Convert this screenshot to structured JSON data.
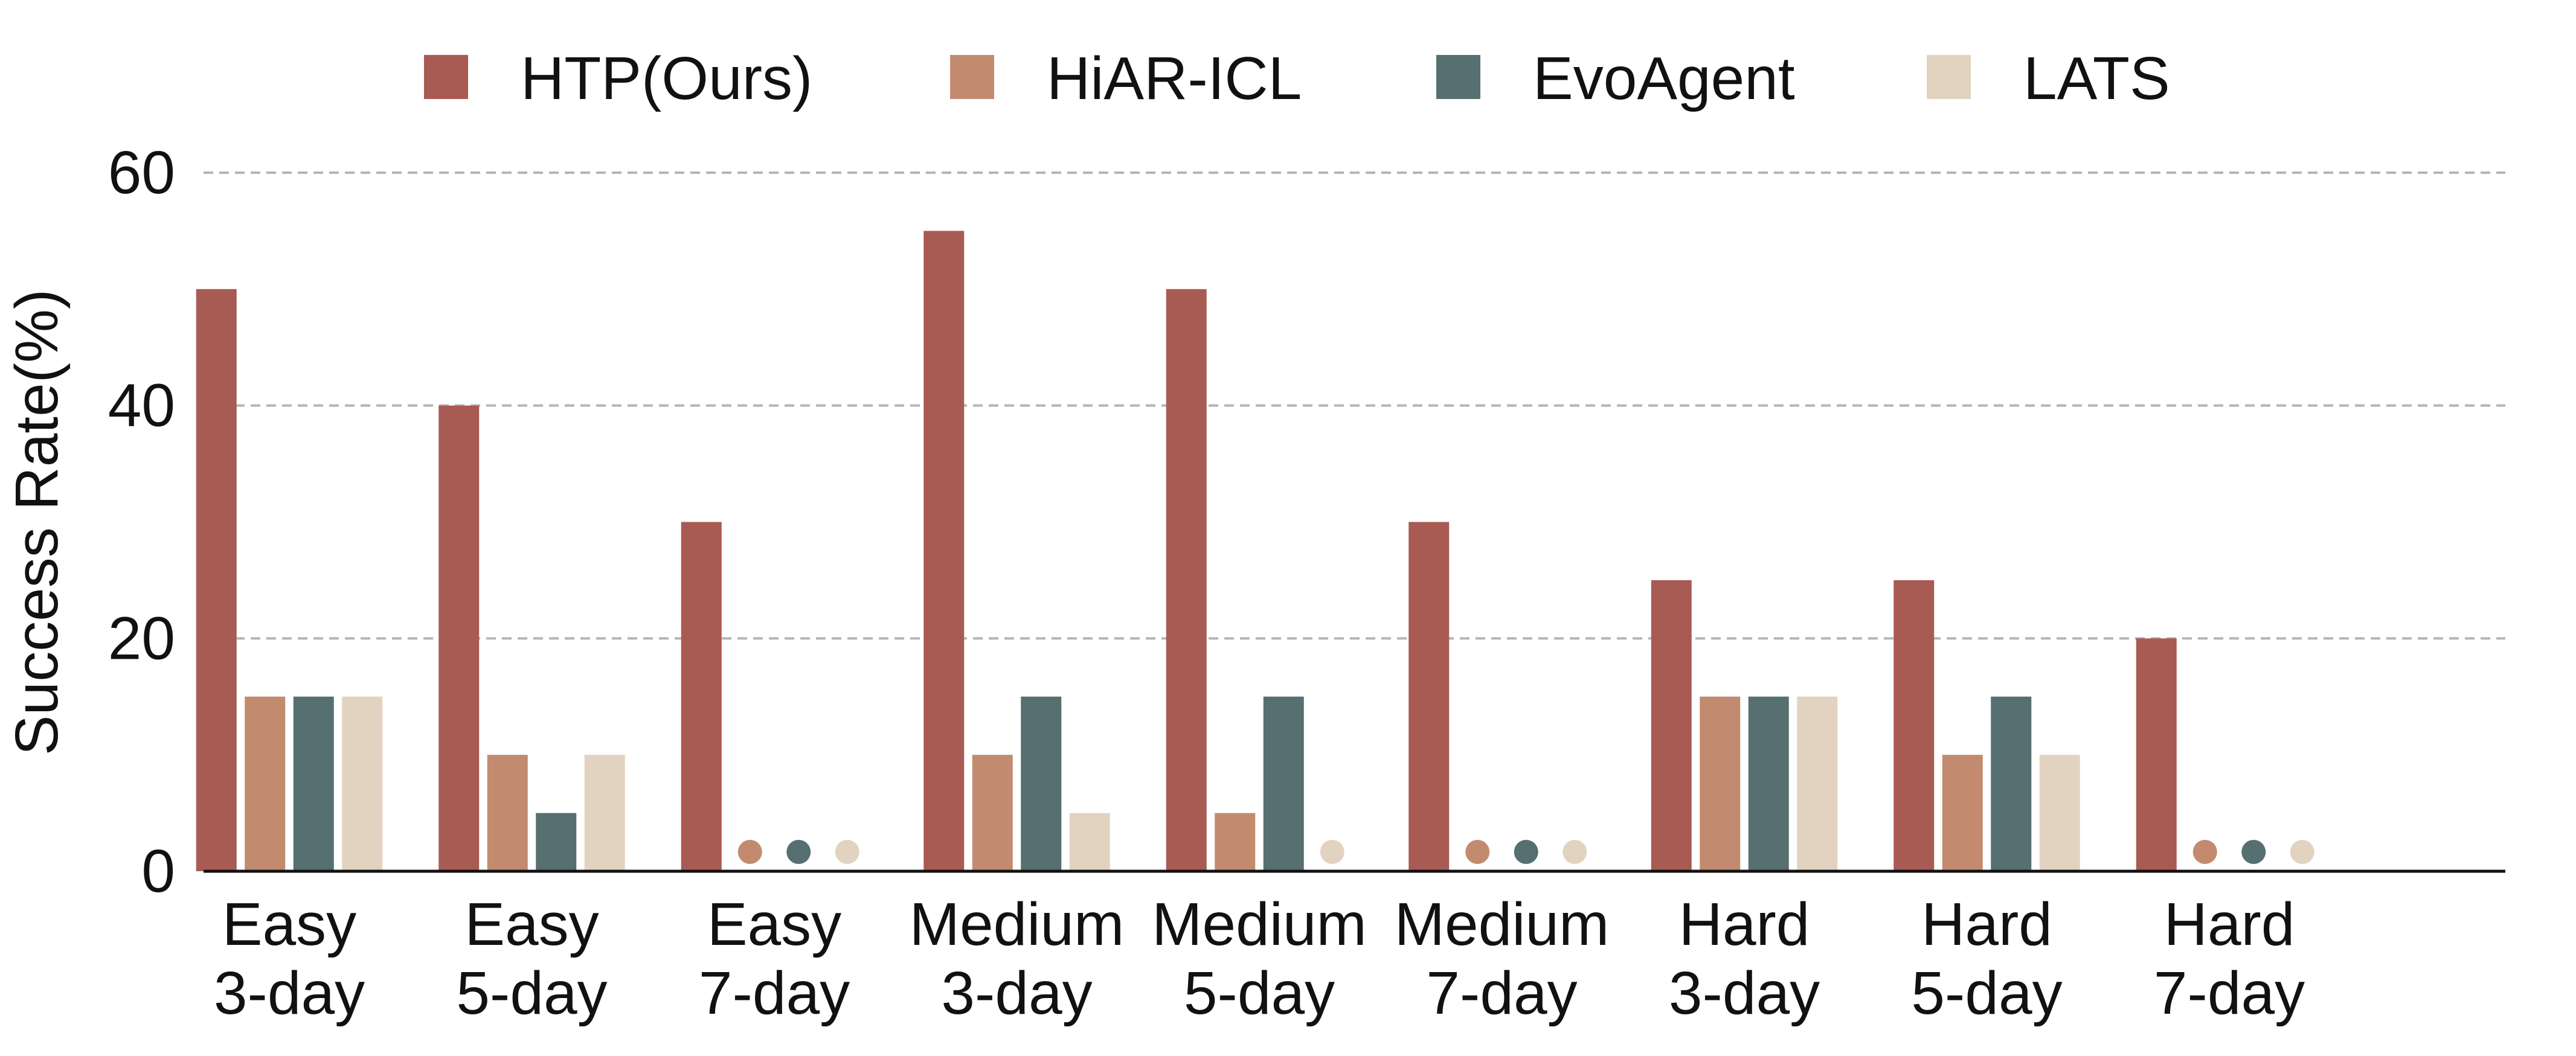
{
  "chart_data": {
    "type": "bar",
    "title": "",
    "xlabel": "",
    "ylabel": "Success Rate(%)",
    "ylim": [
      0,
      60
    ],
    "yticks": [
      0,
      20,
      40,
      60
    ],
    "grid": true,
    "grid_style": "dashed-horizontal",
    "legend_position": "top",
    "categories": [
      [
        "Easy",
        "3-day"
      ],
      [
        "Easy",
        "5-day"
      ],
      [
        "Easy",
        "7-day"
      ],
      [
        "Medium",
        "3-day"
      ],
      [
        "Medium",
        "5-day"
      ],
      [
        "Medium",
        "7-day"
      ],
      [
        "Hard",
        "3-day"
      ],
      [
        "Hard",
        "5-day"
      ],
      [
        "Hard",
        "7-day"
      ]
    ],
    "zero_value_marker": "dot",
    "series": [
      {
        "name": "HTP(Ours)",
        "color": "#A85B53",
        "values": [
          50,
          40,
          30,
          55,
          50,
          30,
          25,
          25,
          20
        ]
      },
      {
        "name": "HiAR-ICL",
        "color": "#C28B6F",
        "values": [
          15,
          10,
          0,
          10,
          5,
          0,
          15,
          10,
          0
        ]
      },
      {
        "name": "EvoAgent",
        "color": "#566F70",
        "values": [
          15,
          5,
          0,
          15,
          15,
          0,
          15,
          15,
          0
        ]
      },
      {
        "name": "LATS",
        "color": "#E2D3C0",
        "values": [
          15,
          10,
          0,
          5,
          0,
          0,
          15,
          10,
          0
        ]
      }
    ]
  }
}
